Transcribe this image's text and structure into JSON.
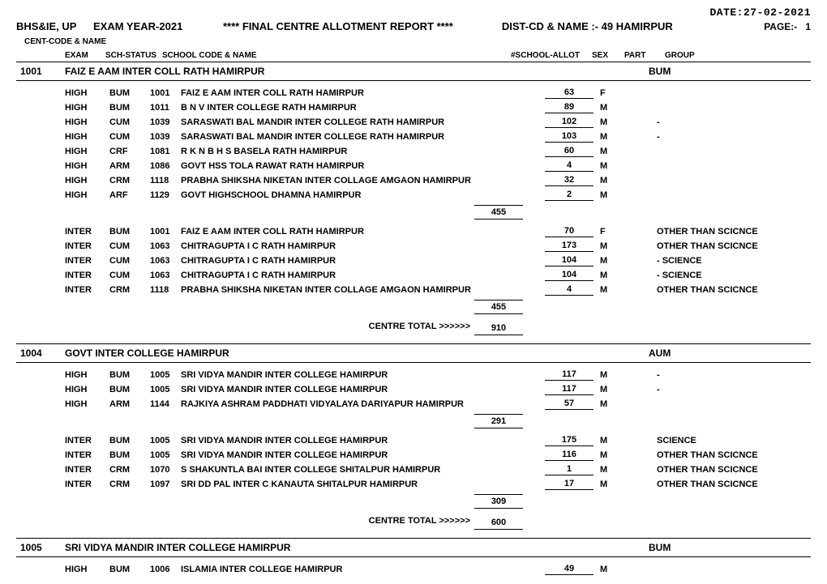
{
  "date_label": "DATE:",
  "date_value": "27-02-2021",
  "board": "BHS&IE, UP",
  "exam_year": "EXAM YEAR-2021",
  "title": "****  FINAL CENTRE  ALLOTMENT REPORT  ****",
  "dist_label": "DIST-CD & NAME :-",
  "dist_value": "49 HAMIRPUR",
  "page_label": "PAGE:-",
  "page_value": "1",
  "cent_label": "CENT-CODE & NAME",
  "headers": {
    "exam": "EXAM",
    "sch_status": "SCH-STATUS",
    "school": "SCHOOL CODE & NAME",
    "allot": "#SCHOOL-ALLOT",
    "sex": "SEX",
    "part": "PART",
    "group": "GROUP"
  },
  "centre_total_label": "CENTRE TOTAL >>>>>>",
  "centres": [
    {
      "code": "1001",
      "name": "FAIZ E AAM INTER COLL RATH HAMIRPUR",
      "group": "BUM",
      "sections": [
        {
          "rows": [
            {
              "exam": "HIGH",
              "sch": "BUM",
              "scode": "1001",
              "sname": "FAIZ E AAM INTER COLL RATH HAMIRPUR",
              "allot": "63",
              "sex": "F",
              "part": "",
              "group": ""
            },
            {
              "exam": "HIGH",
              "sch": "BUM",
              "scode": "1011",
              "sname": "B N V INTER COLLEGE RATH HAMIRPUR",
              "allot": "89",
              "sex": "M",
              "part": "",
              "group": ""
            },
            {
              "exam": "HIGH",
              "sch": "CUM",
              "scode": "1039",
              "sname": "SARASWATI BAL MANDIR INTER COLLEGE RATH HAMIRPUR",
              "allot": "102",
              "sex": "M",
              "part": "",
              "group": "-"
            },
            {
              "exam": "HIGH",
              "sch": "CUM",
              "scode": "1039",
              "sname": "SARASWATI BAL MANDIR INTER COLLEGE RATH HAMIRPUR",
              "allot": "103",
              "sex": "M",
              "part": "",
              "group": "-"
            },
            {
              "exam": "HIGH",
              "sch": "CRF",
              "scode": "1081",
              "sname": "R K N B H S BASELA RATH HAMIRPUR",
              "allot": "60",
              "sex": "M",
              "part": "",
              "group": ""
            },
            {
              "exam": "HIGH",
              "sch": "ARM",
              "scode": "1086",
              "sname": "GOVT HSS TOLA RAWAT RATH HAMIRPUR",
              "allot": "4",
              "sex": "M",
              "part": "",
              "group": ""
            },
            {
              "exam": "HIGH",
              "sch": "CRM",
              "scode": "1118",
              "sname": "PRABHA SHIKSHA NIKETAN INTER COLLAGE AMGAON HAMIRPUR",
              "allot": "32",
              "sex": "M",
              "part": "",
              "group": ""
            },
            {
              "exam": "HIGH",
              "sch": "ARF",
              "scode": "1129",
              "sname": "GOVT HIGHSCHOOL DHAMNA HAMIRPUR",
              "allot": "2",
              "sex": "M",
              "part": "",
              "group": ""
            }
          ],
          "subtotal": "455"
        },
        {
          "rows": [
            {
              "exam": "INTER",
              "sch": "BUM",
              "scode": "1001",
              "sname": "FAIZ E AAM INTER COLL RATH HAMIRPUR",
              "allot": "70",
              "sex": "F",
              "part": "",
              "group": "OTHER THAN SCICNCE"
            },
            {
              "exam": "INTER",
              "sch": "CUM",
              "scode": "1063",
              "sname": "CHITRAGUPTA I C RATH HAMIRPUR",
              "allot": "173",
              "sex": "M",
              "part": "",
              "group": "OTHER THAN SCICNCE"
            },
            {
              "exam": "INTER",
              "sch": "CUM",
              "scode": "1063",
              "sname": "CHITRAGUPTA I C RATH HAMIRPUR",
              "allot": "104",
              "sex": "M",
              "part": "",
              "group": "- SCIENCE"
            },
            {
              "exam": "INTER",
              "sch": "CUM",
              "scode": "1063",
              "sname": "CHITRAGUPTA I C RATH HAMIRPUR",
              "allot": "104",
              "sex": "M",
              "part": "",
              "group": "- SCIENCE"
            },
            {
              "exam": "INTER",
              "sch": "CRM",
              "scode": "1118",
              "sname": "PRABHA SHIKSHA NIKETAN INTER COLLAGE AMGAON HAMIRPUR",
              "allot": "4",
              "sex": "M",
              "part": "",
              "group": "OTHER THAN SCICNCE"
            }
          ],
          "subtotal": "455"
        }
      ],
      "centre_total": "910"
    },
    {
      "code": "1004",
      "name": "GOVT INTER COLLEGE HAMIRPUR",
      "group": "AUM",
      "sections": [
        {
          "rows": [
            {
              "exam": "HIGH",
              "sch": "BUM",
              "scode": "1005",
              "sname": "SRI VIDYA MANDIR INTER COLLEGE HAMIRPUR",
              "allot": "117",
              "sex": "M",
              "part": "",
              "group": "-"
            },
            {
              "exam": "HIGH",
              "sch": "BUM",
              "scode": "1005",
              "sname": "SRI VIDYA MANDIR INTER COLLEGE HAMIRPUR",
              "allot": "117",
              "sex": "M",
              "part": "",
              "group": "-"
            },
            {
              "exam": "HIGH",
              "sch": "ARM",
              "scode": "1144",
              "sname": "RAJKIYA ASHRAM PADDHATI VIDYALAYA DARIYAPUR HAMIRPUR",
              "allot": "57",
              "sex": "M",
              "part": "",
              "group": ""
            }
          ],
          "subtotal": "291"
        },
        {
          "rows": [
            {
              "exam": "INTER",
              "sch": "BUM",
              "scode": "1005",
              "sname": "SRI VIDYA MANDIR INTER COLLEGE HAMIRPUR",
              "allot": "175",
              "sex": "M",
              "part": "",
              "group": "SCIENCE"
            },
            {
              "exam": "INTER",
              "sch": "BUM",
              "scode": "1005",
              "sname": "SRI VIDYA MANDIR INTER COLLEGE HAMIRPUR",
              "allot": "116",
              "sex": "M",
              "part": "",
              "group": "OTHER THAN SCICNCE"
            },
            {
              "exam": "INTER",
              "sch": "CRM",
              "scode": "1070",
              "sname": "S SHAKUNTLA BAI INTER COLLEGE SHITALPUR HAMIRPUR",
              "allot": "1",
              "sex": "M",
              "part": "",
              "group": "OTHER THAN SCICNCE"
            },
            {
              "exam": "INTER",
              "sch": "CRM",
              "scode": "1097",
              "sname": "SRI DD PAL INTER C  KANAUTA SHITALPUR HAMIRPUR",
              "allot": "17",
              "sex": "M",
              "part": "",
              "group": "OTHER THAN SCICNCE"
            }
          ],
          "subtotal": "309"
        }
      ],
      "centre_total": "600"
    },
    {
      "code": "1005",
      "name": "SRI VIDYA MANDIR INTER COLLEGE HAMIRPUR",
      "group": "BUM",
      "sections": [
        {
          "rows": [
            {
              "exam": "HIGH",
              "sch": "BUM",
              "scode": "1006",
              "sname": "ISLAMIA INTER COLLEGE HAMIRPUR",
              "allot": "49",
              "sex": "M",
              "part": "",
              "group": ""
            }
          ]
        }
      ]
    }
  ]
}
